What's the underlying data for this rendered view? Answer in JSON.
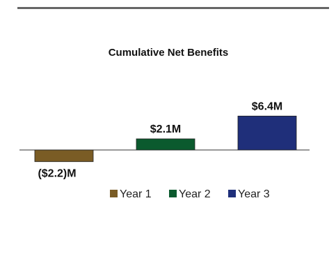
{
  "chart_data": {
    "type": "bar",
    "title": "Cumulative Net Benefits",
    "categories": [
      "Year 1",
      "Year 2",
      "Year 3"
    ],
    "values": [
      -2.2,
      2.1,
      6.4
    ],
    "data_labels": [
      "($2.2)M",
      "$2.1M",
      "$6.4M"
    ],
    "colors": [
      "#7a5c25",
      "#0b5a2e",
      "#1f2f7a"
    ],
    "ylim": [
      -3,
      7
    ],
    "grid": false,
    "legend": {
      "placement": "bottom",
      "entries": [
        "Year 1",
        "Year 2",
        "Year 3"
      ]
    }
  }
}
